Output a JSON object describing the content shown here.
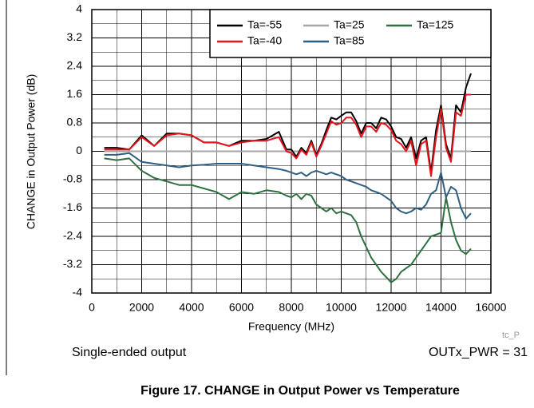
{
  "chart_data": {
    "type": "line",
    "xlabel": "Frequency (MHz)",
    "ylabel": "CHANGE in Output Power (dB)",
    "annotations": [
      "tc_P",
      "Single-ended output",
      "OUTx_PWR = 31"
    ],
    "caption": "Figure 17. CHANGE in Output Power vs Temperature",
    "x": [
      500,
      1000,
      1500,
      2000,
      2500,
      3000,
      3500,
      4000,
      4500,
      5000,
      5500,
      6000,
      6500,
      7000,
      7500,
      7800,
      8000,
      8200,
      8400,
      8600,
      8800,
      9000,
      9200,
      9400,
      9600,
      9800,
      10000,
      10200,
      10400,
      10600,
      10800,
      11000,
      11200,
      11400,
      11600,
      11800,
      12000,
      12200,
      12400,
      12600,
      12800,
      13000,
      13200,
      13400,
      13600,
      13800,
      14000,
      14200,
      14400,
      14600,
      14800,
      15000,
      15200
    ],
    "series": [
      {
        "name": "Ta=-55",
        "color": "#000000",
        "values": [
          0.1,
          0.1,
          0.05,
          0.45,
          0.15,
          0.5,
          0.5,
          0.45,
          0.25,
          0.25,
          0.15,
          0.3,
          0.3,
          0.35,
          0.55,
          0.05,
          0.05,
          -0.15,
          0.1,
          -0.05,
          0.3,
          -0.1,
          0.2,
          0.6,
          0.95,
          0.9,
          1.0,
          1.1,
          1.1,
          0.85,
          0.5,
          0.8,
          0.8,
          0.65,
          0.95,
          0.9,
          0.7,
          0.4,
          0.35,
          0.1,
          0.4,
          -0.2,
          0.3,
          0.4,
          -0.6,
          0.6,
          1.3,
          0.2,
          -0.2,
          1.3,
          1.1,
          1.8,
          2.2
        ]
      },
      {
        "name": "Ta=25",
        "color": "#a6a6a6",
        "values": [
          0,
          0,
          0,
          0,
          0,
          0,
          0,
          0,
          0,
          0,
          0,
          0,
          0,
          0,
          0,
          0,
          0,
          0,
          0,
          0,
          0,
          0,
          0,
          0,
          0,
          0,
          0,
          0,
          0,
          0,
          0,
          0,
          0,
          0,
          0,
          0,
          0,
          0,
          0,
          0,
          0,
          0,
          0,
          0,
          0,
          0,
          0,
          0,
          0,
          0,
          0,
          0,
          0
        ]
      },
      {
        "name": "Ta=125",
        "color": "#2e7040",
        "values": [
          -0.2,
          -0.25,
          -0.2,
          -0.55,
          -0.75,
          -0.85,
          -0.95,
          -0.95,
          -1.05,
          -1.15,
          -1.35,
          -1.15,
          -1.2,
          -1.1,
          -1.15,
          -1.25,
          -1.3,
          -1.2,
          -1.35,
          -1.2,
          -1.25,
          -1.5,
          -1.6,
          -1.7,
          -1.6,
          -1.75,
          -1.7,
          -1.75,
          -1.8,
          -2.0,
          -2.4,
          -2.7,
          -3.0,
          -3.2,
          -3.4,
          -3.55,
          -3.7,
          -3.6,
          -3.4,
          -3.3,
          -3.2,
          -3.0,
          -2.8,
          -2.6,
          -2.4,
          -2.35,
          -2.3,
          -1.3,
          -2.0,
          -2.5,
          -2.8,
          -2.9,
          -2.75
        ]
      },
      {
        "name": "Ta=-40",
        "color": "#e8141c",
        "values": [
          0.05,
          0.05,
          0.05,
          0.4,
          0.15,
          0.45,
          0.5,
          0.45,
          0.25,
          0.25,
          0.15,
          0.25,
          0.3,
          0.3,
          0.4,
          0,
          -0.05,
          -0.2,
          0.05,
          -0.1,
          0.25,
          -0.15,
          0.15,
          0.5,
          0.85,
          0.75,
          0.8,
          0.95,
          0.95,
          0.75,
          0.4,
          0.7,
          0.7,
          0.55,
          0.8,
          0.75,
          0.6,
          0.3,
          0.2,
          0,
          0.3,
          -0.4,
          0.2,
          0.3,
          -0.7,
          0.4,
          1.2,
          0.1,
          -0.3,
          1.1,
          1.0,
          1.6,
          1.6
        ]
      },
      {
        "name": "Ta=85",
        "color": "#2f5f80",
        "values": [
          -0.1,
          -0.1,
          -0.05,
          -0.3,
          -0.35,
          -0.4,
          -0.45,
          -0.4,
          -0.38,
          -0.35,
          -0.35,
          -0.35,
          -0.4,
          -0.45,
          -0.5,
          -0.55,
          -0.6,
          -0.65,
          -0.6,
          -0.7,
          -0.6,
          -0.55,
          -0.6,
          -0.65,
          -0.6,
          -0.65,
          -0.7,
          -0.8,
          -0.85,
          -0.9,
          -0.95,
          -1.0,
          -1.1,
          -1.15,
          -1.2,
          -1.3,
          -1.4,
          -1.6,
          -1.7,
          -1.75,
          -1.7,
          -1.6,
          -1.65,
          -1.5,
          -1.2,
          -1.1,
          -0.6,
          -1.3,
          -1.0,
          -1.1,
          -1.6,
          -1.9,
          -1.75
        ]
      }
    ],
    "xlim": [
      0,
      16000
    ],
    "xticks": [
      0,
      2000,
      4000,
      6000,
      8000,
      10000,
      12000,
      14000,
      16000
    ],
    "ylim": [
      -4,
      4
    ],
    "yticks": [
      -4,
      -3.2,
      -2.4,
      -1.6,
      -0.8,
      0,
      0.8,
      1.6,
      2.4,
      3.2,
      4
    ],
    "grid": true,
    "legend": "top-right"
  }
}
